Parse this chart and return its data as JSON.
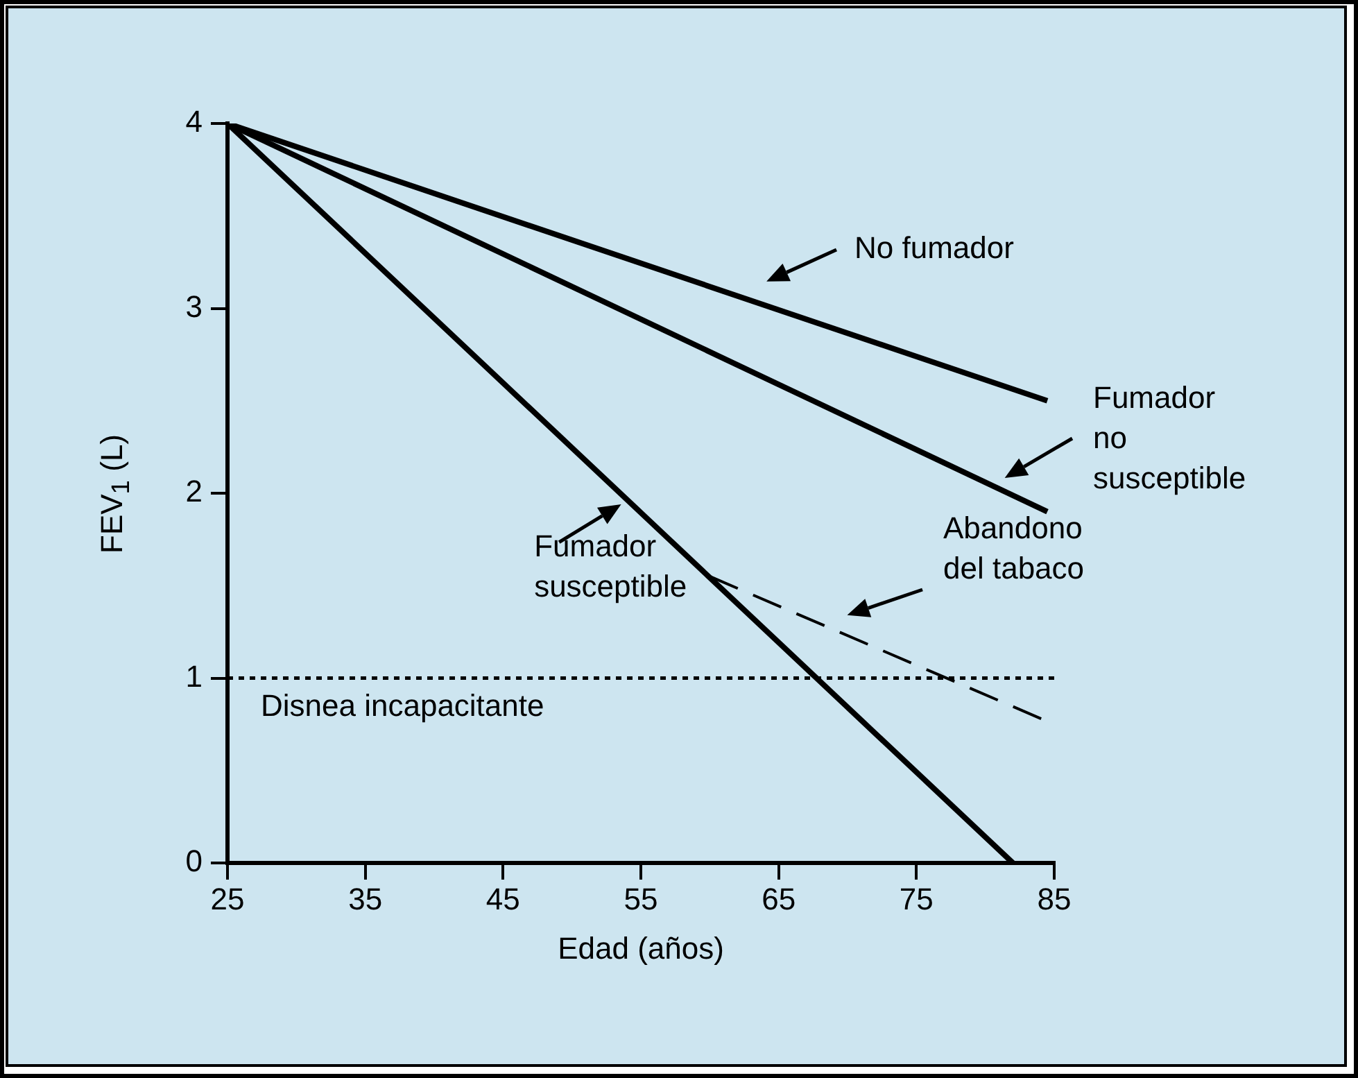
{
  "chart_data": {
    "type": "line",
    "xlabel": "Edad (años)",
    "ylabel": "FEV$_{1}$ (L)",
    "xlim": [
      25,
      85
    ],
    "xticks": [
      25,
      35,
      45,
      55,
      65,
      75,
      85
    ],
    "ylim": [
      0,
      4
    ],
    "yticks": [
      0,
      1,
      2,
      3,
      4
    ],
    "grid": false,
    "legend": false,
    "marker": "none",
    "series": [
      {
        "color": "#000000",
        "x": [
          25,
          84.5
        ],
        "values": [
          4,
          2.5
        ],
        "line_style": "solid"
      },
      {
        "color": "#000000",
        "x": [
          25,
          84.5
        ],
        "values": [
          4,
          1.9
        ],
        "line_style": "solid"
      },
      {
        "color": "#000000",
        "x": [
          25,
          82
        ],
        "values": [
          4,
          0
        ],
        "line_style": "solid"
      },
      {
        "color": "#000000",
        "x": [
          60,
          85
        ],
        "values": [
          1.55,
          0.75
        ],
        "line_style": "dashed"
      }
    ],
    "ref_lines": [
      {
        "axis": "y",
        "value": 1,
        "label": "Disnea incapacitante",
        "color": "#000000",
        "line_style": "dotted"
      }
    ],
    "annotations": [
      "No fumador",
      "Fumador\nno\nsusceptible",
      {
        "text": "Fumador\nsusceptible",
        "x": 54,
        "y": 1.96
      },
      "Abandono\ndel tabaco"
    ]
  }
}
